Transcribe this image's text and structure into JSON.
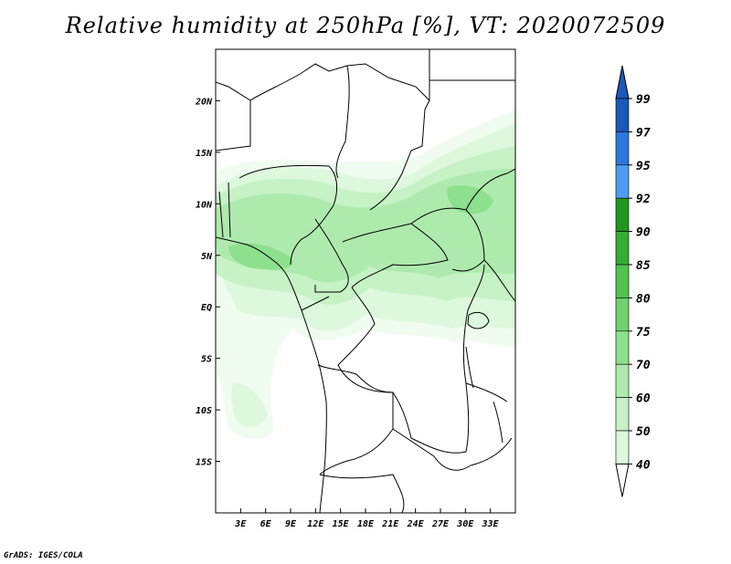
{
  "title": "Relative humidity at 250hPa [%], VT: 2020072509",
  "credit": "GrADS: IGES/COLA",
  "map": {
    "lon_range": [
      0,
      36
    ],
    "lat_range": [
      -20,
      25
    ],
    "lon_ticks": [
      {
        "value": 3,
        "label": "3E"
      },
      {
        "value": 6,
        "label": "6E"
      },
      {
        "value": 9,
        "label": "9E"
      },
      {
        "value": 12,
        "label": "12E"
      },
      {
        "value": 15,
        "label": "15E"
      },
      {
        "value": 18,
        "label": "18E"
      },
      {
        "value": 21,
        "label": "21E"
      },
      {
        "value": 24,
        "label": "24E"
      },
      {
        "value": 27,
        "label": "27E"
      },
      {
        "value": 30,
        "label": "30E"
      },
      {
        "value": 33,
        "label": "33E"
      }
    ],
    "lat_ticks": [
      {
        "value": 20,
        "label": "20N"
      },
      {
        "value": 15,
        "label": "15N"
      },
      {
        "value": 10,
        "label": "10N"
      },
      {
        "value": 5,
        "label": "5N"
      },
      {
        "value": 0,
        "label": "EQ"
      },
      {
        "value": -5,
        "label": "5S"
      },
      {
        "value": -10,
        "label": "10S"
      },
      {
        "value": -15,
        "label": "15S"
      }
    ]
  },
  "colorbar": {
    "levels": [
      "40",
      "50",
      "60",
      "70",
      "75",
      "80",
      "85",
      "90",
      "92",
      "95",
      "97",
      "99"
    ],
    "colors": [
      "#f0fcf0",
      "#ddf8dd",
      "#c6f2c6",
      "#aeeaae",
      "#8de08d",
      "#6ed36e",
      "#4fc44f",
      "#33ad33",
      "#1f961f",
      "#4c9cf0",
      "#2a78dc",
      "#1c58b8"
    ],
    "below_color": "#ffffff",
    "above_color": "#1c58b8"
  }
}
